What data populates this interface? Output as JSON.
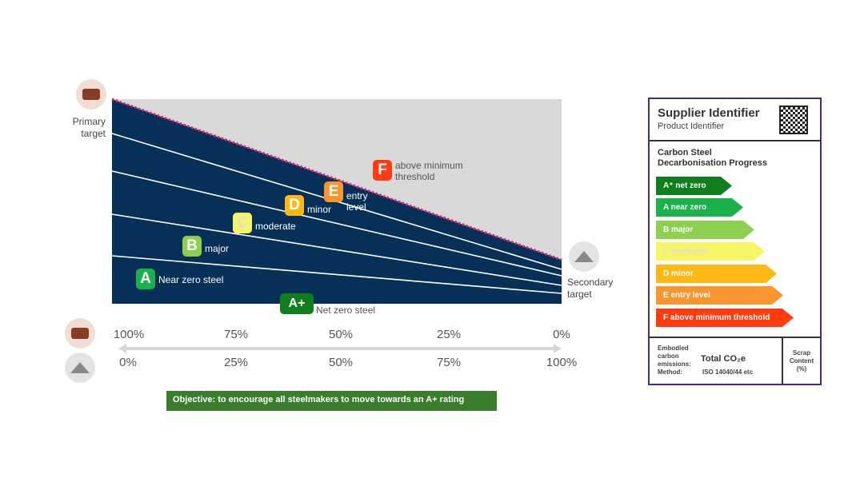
{
  "chart": {
    "primary_target": "Primary target",
    "secondary_target": "Secondary target",
    "grades": [
      {
        "letter": "F",
        "label": "above minimum threshold",
        "color": "#ff3b0f"
      },
      {
        "letter": "E",
        "label": "entry level",
        "color": "#f7962f"
      },
      {
        "letter": "D",
        "label": "minor",
        "color": "#fdb813"
      },
      {
        "letter": "C",
        "label": "moderate",
        "color": "#f7f466"
      },
      {
        "letter": "B",
        "label": "major",
        "color": "#8dcf4f"
      },
      {
        "letter": "A",
        "label": "Near zero steel",
        "color": "#1bb24b"
      },
      {
        "letter": "A+",
        "label": "Net zero steel",
        "color": "#0e7f1c"
      }
    ],
    "colors": {
      "fill": "#063058",
      "above": "#d9d9d9",
      "threshold": "#d6246e"
    }
  },
  "axis": {
    "primary_row": [
      "100%",
      "75%",
      "50%",
      "25%",
      "0%"
    ],
    "secondary_row": [
      "0%",
      "25%",
      "50%",
      "75%",
      "100%"
    ]
  },
  "objective": "Objective: to encourage all steelmakers to move towards an A+ rating",
  "label": {
    "supplier": "Supplier Identifier",
    "product": "Product Identifier",
    "title_line1": "Carbon Steel",
    "title_line2": "Decarbonisation Progress",
    "bars": [
      {
        "text": "A⁺ net zero",
        "color": "#0e7f1c"
      },
      {
        "text": "A  near zero",
        "color": "#1bb24b"
      },
      {
        "text": "B major",
        "color": "#8dcf4f"
      },
      {
        "text": "C moderate",
        "color": "#f7f466"
      },
      {
        "text": "D minor",
        "color": "#fdb813"
      },
      {
        "text": "E entry level",
        "color": "#f7962f"
      },
      {
        "text": "F above minimum threshold",
        "color": "#ff3b0f"
      }
    ],
    "footer_l1": "Embodied",
    "footer_l2": "carbon",
    "footer_l3": "emissions:",
    "footer_l4": "Method:",
    "total": "Total CO₂e",
    "method": "ISO 14040/44 etc",
    "scrap": "Scrap Content (%)"
  }
}
